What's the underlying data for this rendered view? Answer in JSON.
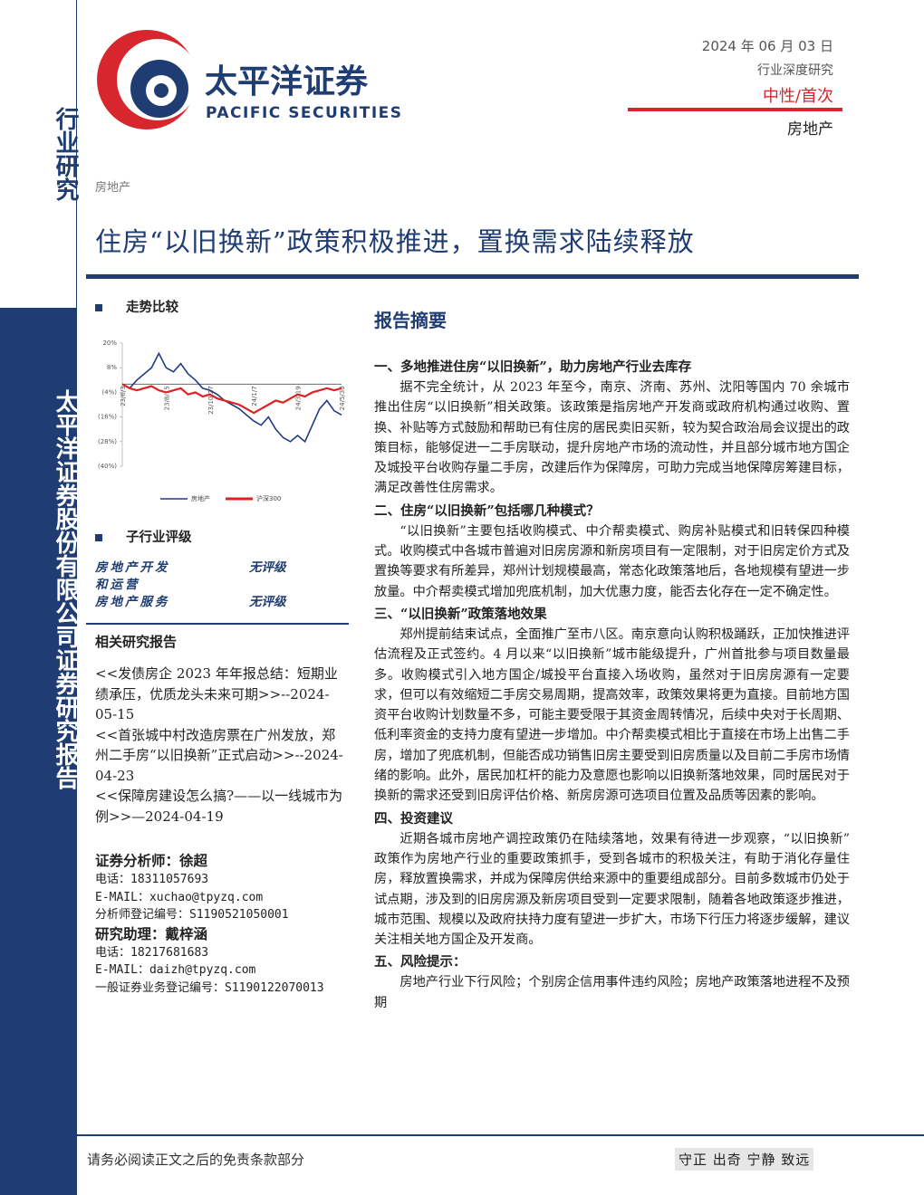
{
  "sidebar": {
    "top": "行业研究",
    "bottom": "太平洋证券股份有限公司证券研究报告"
  },
  "header": {
    "logo_cn": "太平洋证券",
    "logo_en": "PACIFIC SECURITIES",
    "date": "2024 年 06 月 03 日",
    "report_type": "行业深度研究",
    "rating": "中性/首次",
    "industry": "房地产"
  },
  "category": "房地产",
  "title": "住房“以旧换新”政策积极推进，置换需求陆续释放",
  "trend_heading": "走势比较",
  "chart_data": {
    "type": "line",
    "categories": [
      "23/6/3",
      null,
      null,
      null,
      null,
      null,
      "23/8/15",
      null,
      null,
      null,
      null,
      null,
      "23/10/27",
      null,
      null,
      null,
      null,
      null,
      "24/1/7",
      null,
      null,
      null,
      null,
      null,
      "24/3/19",
      null,
      null,
      null,
      null,
      null,
      "24/5/30"
    ],
    "series": [
      {
        "name": "房地产",
        "color": "#1f3c88",
        "values": [
          0,
          -2,
          2,
          5,
          8,
          15,
          8,
          6,
          10,
          5,
          2,
          -2,
          -3,
          -5,
          -8,
          -10,
          -12,
          -15,
          -18,
          -20,
          -16,
          -22,
          -26,
          -28,
          -25,
          -28,
          -20,
          -12,
          -8,
          -13,
          -15
        ]
      },
      {
        "name": "沪深300",
        "color": "#e02020",
        "values": [
          0,
          -2,
          -3,
          -2,
          -1,
          -3,
          -4,
          -3,
          -2,
          -5,
          -4,
          -6,
          -5,
          -7,
          -8,
          -9,
          -10,
          -12,
          -14,
          -12,
          -10,
          -8,
          -9,
          -7,
          -5,
          -6,
          -4,
          -3,
          -2,
          -3,
          -2
        ]
      }
    ],
    "ylim": [
      -40,
      20
    ],
    "yticks": [
      {
        "value": 20,
        "label": "20%"
      },
      {
        "value": 8,
        "label": "8%"
      },
      {
        "value": -4,
        "label": "(4%)"
      },
      {
        "value": -16,
        "label": "(16%)"
      },
      {
        "value": -28,
        "label": "(28%)"
      },
      {
        "value": -40,
        "label": "(40%)"
      }
    ]
  },
  "ratings": {
    "heading": "子行业评级",
    "rows": [
      [
        "房地产开发和运营",
        "无评级"
      ],
      [
        "房地产服务",
        "无评级"
      ]
    ]
  },
  "related": {
    "heading": "相关研究报告",
    "items": [
      "<<发债房企 2023 年年报总结：短期业绩承压，优质龙头未来可期>>--2024-05-15",
      "<<首张城中村改造房票在广州发放，郑州二手房“以旧换新”正式启动>>--2024-04-23",
      "<<保障房建设怎么搞?——以一线城市为例>>—2024-04-19"
    ]
  },
  "analysts": [
    {
      "text": "证券分析师：徐超",
      "bold": true
    },
    {
      "text": "电话：18311057693",
      "bold": false
    },
    {
      "text": "E-MAIL：xuchao@tpyzq.com",
      "bold": false
    },
    {
      "text": "分析师登记编号：S1190521050001",
      "bold": false
    },
    {
      "text": "研究助理：戴梓涵",
      "bold": true
    },
    {
      "text": "电话：18217681683",
      "bold": false
    },
    {
      "text": "E-MAIL：daizh@tpyzq.com",
      "bold": false
    },
    {
      "text": "一般证券业务登记编号：S1190122070013",
      "bold": false
    }
  ],
  "summary": {
    "heading": "报告摘要",
    "sections": [
      {
        "heading": "一、多地推进住房“以旧换新”，助力房地产行业去库存",
        "text": "据不完全统计，从 2023 年至今，南京、济南、苏州、沈阳等国内 70 余城市推出住房“以旧换新”相关政策。该政策是指房地产开发商或政府机构通过收购、置换、补贴等方式鼓励和帮助已有住房的居民卖旧买新，较为契合政治局会议提出的政策目标，能够促进一二手房联动，提升房地产市场的流动性，并且部分城市地方国企及城投平台收购存量二手房，改建后作为保障房，可助力完成当地保障房筹建目标，满足改善性住房需求。"
      },
      {
        "heading": "二、住房“以旧换新”包括哪几种模式？",
        "text": "“以旧换新”主要包括收购模式、中介帮卖模式、购房补贴模式和旧转保四种模式。收购模式中各城市普遍对旧房房源和新房项目有一定限制，对于旧房定价方式及置换等要求有所差异，郑州计划规模最高，常态化政策落地后，各地规模有望进一步放量。中介帮卖模式增加兜底机制，加大优惠力度，能否去化存在一定不确定性。"
      },
      {
        "heading": "三、“以旧换新”政策落地效果",
        "text": "郑州提前结束试点，全面推广至市八区。南京意向认购积极踊跃，正加快推进评估流程及正式签约。4 月以来“以旧换新”城市能级提升，广州首批参与项目数量最多。收购模式引入地方国企/城投平台直接入场收购，虽然对于旧房房源有一定要求，但可以有效缩短二手房交易周期，提高效率，政策效果将更为直接。目前地方国资平台收购计划数量不多，可能主要受限于其资金周转情况，后续中央对于长周期、低利率资金的支持力度有望进一步增加。中介帮卖模式相比于直接在市场上出售二手房，增加了兜底机制，但能否成功销售旧房主要受到旧房质量以及目前二手房市场情绪的影响。此外，居民加杠杆的能力及意愿也影响以旧换新落地效果，同时居民对于换新的需求还受到旧房评估价格、新房房源可选项目位置及品质等因素的影响。"
      },
      {
        "heading": "四、投资建议",
        "text": "近期各城市房地产调控政策仍在陆续落地，效果有待进一步观察，“以旧换新”政策作为房地产行业的重要政策抓手，受到各城市的积极关注，有助于消化存量住房，释放置换需求，并成为保障房供给来源中的重要组成部分。目前多数城市仍处于试点期，涉及到的旧房房源及新房项目受到一定要求限制，随着各地政策逐步推进，城市范围、规模以及政府扶持力度有望进一步扩大，市场下行压力将逐步缓解，建议关注相关地方国企及开发商。"
      },
      {
        "heading": "五、风险提示：",
        "text": "房地产行业下行风险；个别房企信用事件违约风险；房地产政策落地进程不及预期"
      }
    ]
  },
  "footer": {
    "left": "请务必阅读正文之后的免责条款部分",
    "right": "守正 出奇 宁静 致远"
  }
}
